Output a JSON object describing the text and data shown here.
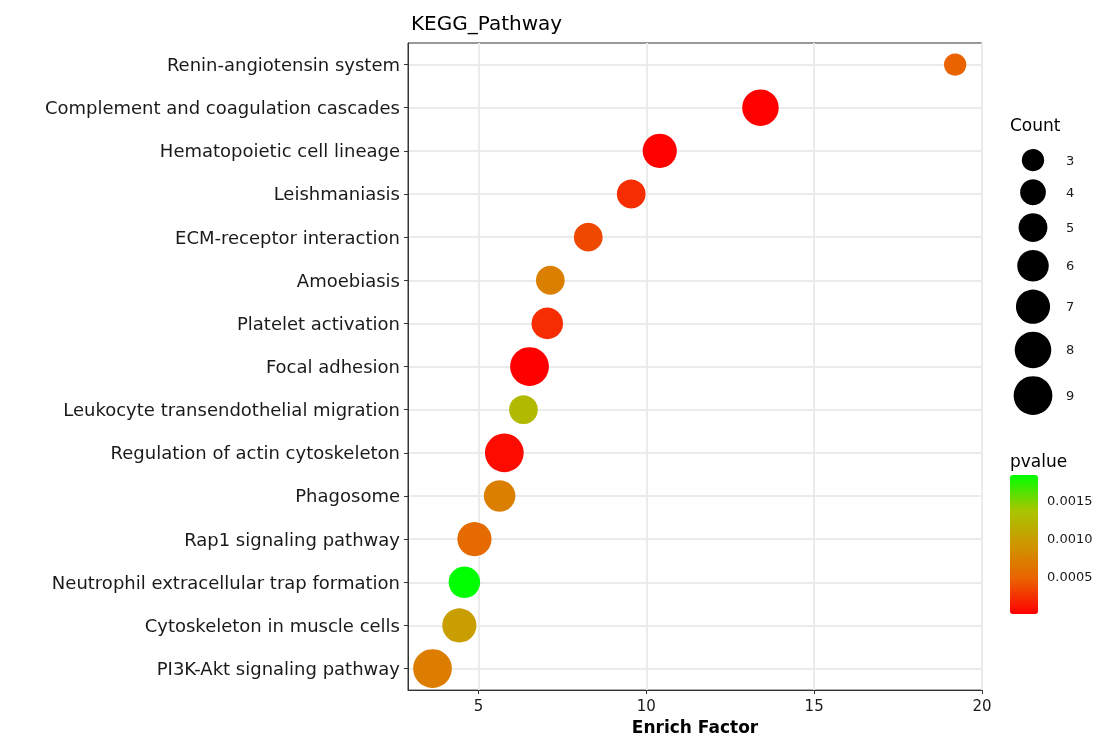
{
  "chart_data": {
    "type": "bubble",
    "title": "KEGG_Pathway",
    "xlabel": "Enrich Factor",
    "legend_title": "Count",
    "clabel": "pvalue",
    "categories": [
      "Renin-angiotensin system",
      "Complement and coagulation cascades",
      "Hematopoietic cell lineage",
      "Leishmaniasis",
      "ECM-receptor interaction",
      "Amoebiasis",
      "Platelet activation",
      "Focal adhesion",
      "Leukocyte transendothelial migration",
      "Regulation of actin cytoskeleton",
      "Phagosome",
      "Rap1 signaling pathway",
      "Neutrophil extracellular trap formation",
      "Cytoskeleton in muscle cells",
      "PI3K-Akt signaling pathway"
    ],
    "values": [
      19.2,
      13.4,
      10.4,
      9.55,
      8.27,
      7.14,
      7.05,
      6.52,
      6.34,
      5.77,
      5.63,
      4.88,
      4.58,
      4.43,
      3.63
    ],
    "sizes": [
      3,
      8,
      7,
      5,
      5,
      5,
      6,
      9,
      5,
      9,
      6,
      7,
      6,
      7,
      9
    ],
    "size_legend": [
      3,
      4,
      5,
      6,
      7,
      8,
      9
    ],
    "cvalues": [
      0.00048,
      2e-05,
      2e-05,
      0.00022,
      0.00035,
      0.00072,
      0.00022,
      1.3e-05,
      0.00125,
      6e-05,
      0.00072,
      0.00055,
      0.00183,
      0.001,
      0.0007
    ],
    "clim": [
      1.3e-05,
      0.00183
    ],
    "cticks": [
      0.0005,
      {
        "value": 0.001,
        "label": "0.0010"
      },
      0.0015
    ],
    "xlim": [
      2.9,
      20
    ],
    "xticks": [
      5,
      10,
      15,
      20
    ],
    "orientation": "horizontal",
    "grid": true
  }
}
